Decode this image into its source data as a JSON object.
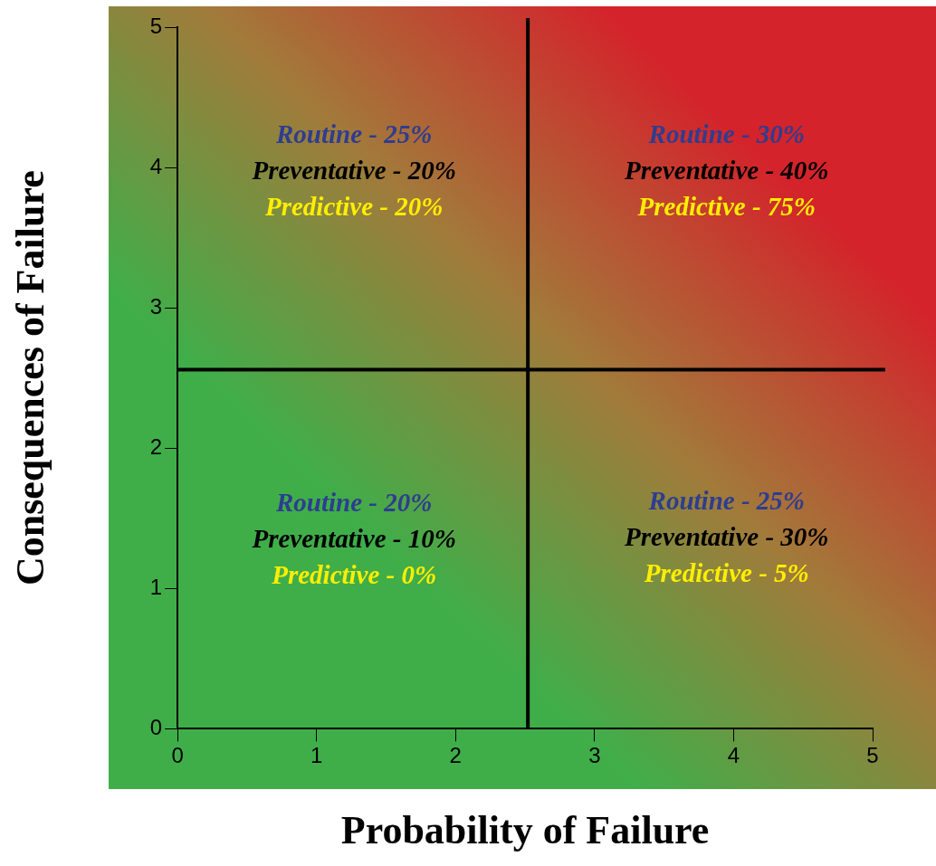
{
  "chart_data": {
    "type": "scatter",
    "xlabel": "Probability of Failure",
    "ylabel": "Consequences of Failure",
    "xlim": [
      0,
      5
    ],
    "ylim": [
      0,
      5
    ],
    "xticks": [
      0,
      1,
      2,
      3,
      4,
      5
    ],
    "yticks": [
      0,
      1,
      2,
      3,
      4,
      5
    ],
    "ref_lines": [
      {
        "axis": "x",
        "value": 2.52,
        "color": "#000000"
      },
      {
        "axis": "y",
        "value": 2.56,
        "color": "#000000"
      }
    ],
    "annotations": [
      "Routine - 25%",
      "Preventative - 20%",
      "Predictive - 20%",
      "Routine - 30%",
      "Preventative - 40%",
      "Predictive - 75%",
      "Routine - 20%",
      "Preventative - 10%",
      "Predictive - 0%",
      "Routine - 25%",
      "Preventative - 30%",
      "Predictive - 5%"
    ]
  }
}
